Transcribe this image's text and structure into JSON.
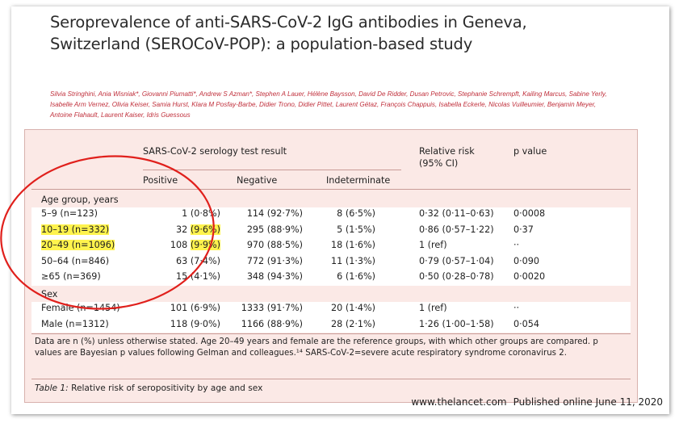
{
  "article": {
    "title": "Seroprevalence of anti-SARS-CoV-2 IgG antibodies in Geneva, Switzerland (SEROCoV-POP): a population-based study",
    "authors": "Silvia Stringhini, Ania Wisniak*, Giovanni Piumatti*, Andrew S Azman*, Stephen A Lauer, Hélène Baysson, David De Ridder, Dusan Petrovic, Stephanie Schrempft, Kailing Marcus, Sabine Yerly, Isabelle Arm Vernez, Olivia Keiser, Samia Hurst, Klara M Posfay-Barbe, Didier Trono, Didier Pittet, Laurent Gétaz, François Chappuis, Isabella Eckerle, Nicolas Vuilleumier, Benjamin Meyer, Antoine Flahault, Laurent Kaiser, Idris Guessous"
  },
  "table": {
    "header": {
      "serology": "SARS-CoV-2 serology test result",
      "relative_risk": "Relative risk",
      "relative_risk_ci": "(95% CI)",
      "p_value": "p value",
      "positive": "Positive",
      "negative": "Negative",
      "indeterminate": "Indeterminate"
    },
    "age_section": "Age group, years",
    "age_rows": [
      {
        "group": "5–9 (n=123)",
        "pos_n": "1",
        "pos_pct": "(0·8%)",
        "negative": "114 (92·7%)",
        "indet": "8 (6·5%)",
        "rr": "0·32 (0·11–0·63)",
        "p": "0·0008",
        "highlight": false
      },
      {
        "group": "10–19 (n=332)",
        "pos_n": "32",
        "pos_pct": "(9·6%)",
        "negative": "295 (88·9%)",
        "indet": "5 (1·5%)",
        "rr": "0·86 (0·57–1·22)",
        "p": "0·37",
        "highlight": true
      },
      {
        "group": "20–49 (n=1096)",
        "pos_n": "108",
        "pos_pct": "(9·9%)",
        "negative": "970 (88·5%)",
        "indet": "18 (1·6%)",
        "rr": "1 (ref)",
        "p": "··",
        "highlight": true
      },
      {
        "group": "50–64 (n=846)",
        "pos_n": "63",
        "pos_pct": "(7·4%)",
        "negative": "772 (91·3%)",
        "indet": "11 (1·3%)",
        "rr": "0·79 (0·57–1·04)",
        "p": "0·090",
        "highlight": false
      },
      {
        "group": "≥65 (n=369)",
        "pos_n": "15",
        "pos_pct": "(4·1%)",
        "negative": "348 (94·3%)",
        "indet": "6 (1·6%)",
        "rr": "0·50 (0·28–0·78)",
        "p": "0·0020",
        "highlight": false
      }
    ],
    "sex_section": "Sex",
    "sex_rows": [
      {
        "group": "Female (n=1454)",
        "pos_n": "101",
        "pos_pct": "(6·9%)",
        "negative": "1333 (91·7%)",
        "indet": "20 (1·4%)",
        "rr": "1 (ref)",
        "p": "··"
      },
      {
        "group": "Male (n=1312)",
        "pos_n": "118",
        "pos_pct": "(9·0%)",
        "negative": "1166 (88·9%)",
        "indet": "28 (2·1%)",
        "rr": "1·26 (1·00–1·58)",
        "p": "0·054"
      }
    ],
    "footnote": "Data are n (%) unless otherwise stated. Age 20–49 years and female are the reference groups, with which other groups are compared. p values are Bayesian p values following Gelman and colleagues.¹⁴ SARS-CoV-2=severe acute respiratory syndrome coronavirus 2.",
    "caption_label": "Table 1:",
    "caption_text": " Relative risk of seropositivity by age and sex"
  },
  "footer": {
    "site": "www.thelancet.com",
    "published": "Published online June 11, 2020"
  },
  "colors": {
    "table_background": "#fbe9e6",
    "author_red": "#c0303c",
    "highlight_yellow": "#fff34d",
    "annotation_circle": "#e0201c"
  }
}
